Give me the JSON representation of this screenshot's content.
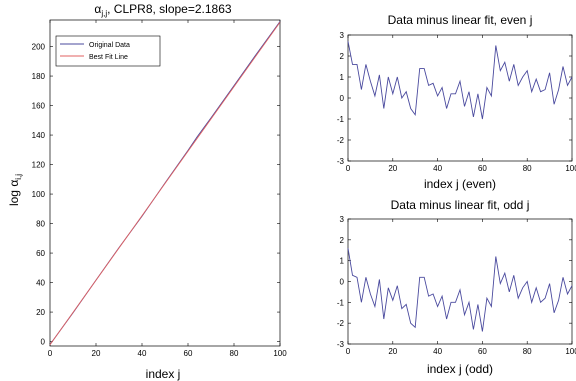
{
  "chart_data": [
    {
      "type": "line",
      "title": "α",
      "title_sub": "j,j",
      "title_rest": ", CLPR8, slope=2.1863",
      "xlabel": "index j",
      "ylabel_main": "log α",
      "ylabel_sub": "i,j",
      "xlim": [
        0,
        100
      ],
      "ylim": [
        -3,
        218
      ],
      "xticks": [
        0,
        20,
        40,
        60,
        80,
        100
      ],
      "yticks": [
        0,
        20,
        40,
        60,
        80,
        100,
        120,
        140,
        160,
        180,
        200
      ],
      "grid": false,
      "legend_position": "top-left",
      "series": [
        {
          "name": "Original Data",
          "color": "#4a4a9e",
          "x": [
            0,
            10,
            20,
            30,
            40,
            50,
            60,
            64,
            70,
            80,
            90,
            100
          ],
          "y": [
            -2,
            19.5,
            41.7,
            63.7,
            84.9,
            107.5,
            129.6,
            138.9,
            151.6,
            173.5,
            195.5,
            217
          ]
        },
        {
          "name": "Best Fit Line",
          "color": "#e06060",
          "x": [
            0,
            100
          ],
          "y": [
            -2.1,
            216.5
          ]
        }
      ]
    },
    {
      "type": "line",
      "title": "Data minus linear fit, even j",
      "xlabel": "index j (even)",
      "xlim": [
        0,
        100
      ],
      "ylim": [
        -3,
        3
      ],
      "xticks": [
        0,
        20,
        40,
        60,
        80,
        100
      ],
      "yticks": [
        -3,
        -2,
        -1,
        0,
        1,
        2,
        3
      ],
      "series": [
        {
          "color": "#4a4a9e",
          "x": [
            0,
            2,
            4,
            6,
            8,
            10,
            12,
            14,
            16,
            18,
            20,
            22,
            24,
            26,
            28,
            30,
            32,
            34,
            36,
            38,
            40,
            42,
            44,
            46,
            48,
            50,
            52,
            54,
            56,
            58,
            60,
            62,
            64,
            66,
            68,
            70,
            72,
            74,
            76,
            78,
            80,
            82,
            84,
            86,
            88,
            90,
            92,
            94,
            96,
            98,
            100
          ],
          "y": [
            2.7,
            1.6,
            1.6,
            0.4,
            1.6,
            0.8,
            0.1,
            1.1,
            -0.5,
            1.0,
            0.2,
            1.0,
            0.0,
            0.3,
            -0.5,
            -0.8,
            1.4,
            1.4,
            0.6,
            0.7,
            0.1,
            0.5,
            -0.5,
            0.2,
            0.2,
            0.8,
            -0.4,
            0.3,
            -0.9,
            0.2,
            -1.0,
            0.5,
            0.1,
            2.5,
            1.3,
            1.7,
            0.8,
            1.6,
            0.6,
            1.0,
            1.3,
            0.3,
            0.9,
            0.3,
            0.4,
            1.2,
            -0.3,
            0.4,
            1.5,
            0.6,
            1.0
          ]
        }
      ]
    },
    {
      "type": "line",
      "title": "Data minus linear fit, odd j",
      "xlabel": "index j (odd)",
      "xlim": [
        0,
        100
      ],
      "ylim": [
        -3,
        3
      ],
      "xticks": [
        0,
        20,
        40,
        60,
        80,
        100
      ],
      "yticks": [
        -3,
        -2,
        -1,
        0,
        1,
        2,
        3
      ],
      "series": [
        {
          "color": "#4a4a9e",
          "x": [
            0,
            2,
            4,
            6,
            8,
            10,
            12,
            14,
            16,
            18,
            20,
            22,
            24,
            26,
            28,
            30,
            32,
            34,
            36,
            38,
            40,
            42,
            44,
            46,
            48,
            50,
            52,
            54,
            56,
            58,
            60,
            62,
            64,
            66,
            68,
            70,
            72,
            74,
            76,
            78,
            80,
            82,
            84,
            86,
            88,
            90,
            92,
            94,
            96,
            98,
            100
          ],
          "y": [
            1.6,
            0.3,
            0.2,
            -1.0,
            0.2,
            -0.6,
            -1.2,
            0.1,
            -1.8,
            -0.3,
            -0.9,
            -0.2,
            -1.3,
            -1.1,
            -2.0,
            -2.2,
            0.2,
            0.2,
            -0.7,
            -0.6,
            -1.2,
            -0.7,
            -1.8,
            -1.0,
            -1.0,
            -0.4,
            -1.6,
            -1.0,
            -2.3,
            -1.1,
            -2.4,
            -0.8,
            -1.2,
            1.2,
            -0.1,
            0.4,
            -0.5,
            0.3,
            -0.8,
            -0.3,
            0.0,
            -1.0,
            -0.3,
            -1.0,
            -0.8,
            -0.1,
            -1.5,
            -0.9,
            0.2,
            -0.6,
            -0.2
          ]
        }
      ]
    }
  ]
}
